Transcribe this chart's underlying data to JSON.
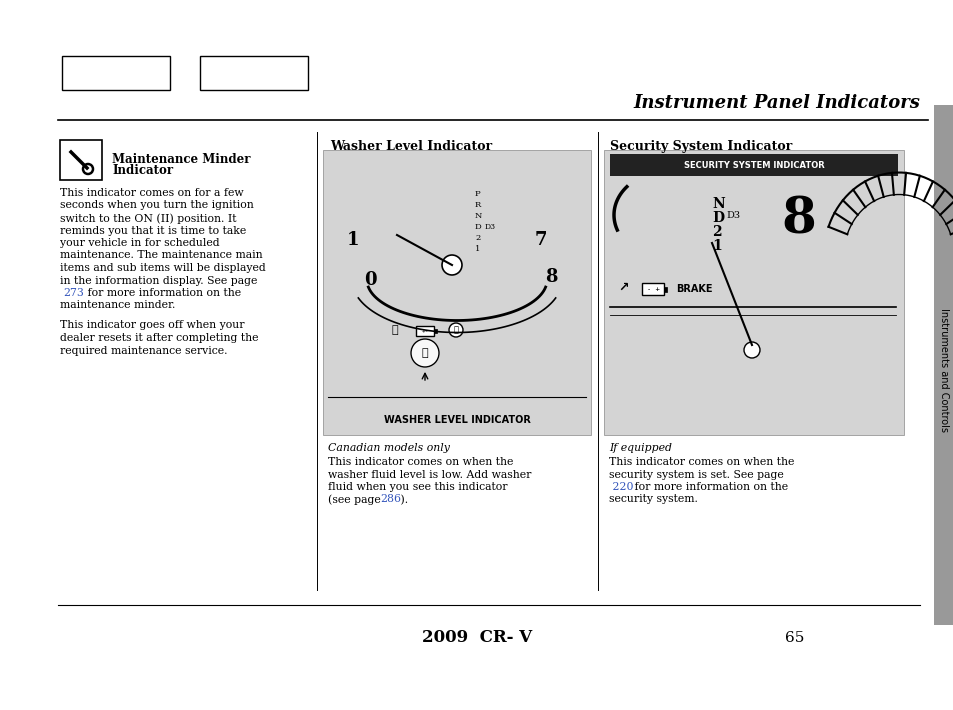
{
  "title": "Instrument Panel Indicators",
  "footer": "2009  CR- V",
  "page_number": "65",
  "sidebar_text": "Instruments and Controls",
  "section1_heading_line1": "Maintenance Minder",
  "section1_heading_line2": "Indicator",
  "section1_body1_lines": [
    "This indicator comes on for a few",
    "seconds when you turn the ignition",
    "switch to the ON (II) position. It",
    "reminds you that it is time to take",
    "your vehicle in for scheduled",
    "maintenance. The maintenance main",
    "items and sub items will be displayed",
    "in the information display. See page"
  ],
  "section1_link1": "273",
  "section1_link1_suffix": " for more information on the",
  "section1_link1_next": "maintenance minder.",
  "section1_body2_lines": [
    "This indicator goes off when your",
    "dealer resets it after completing the",
    "required maintenance service."
  ],
  "section2_heading": "Washer Level Indicator",
  "section2_image_label": "WASHER LEVEL INDICATOR",
  "section2_caption": "Canadian models only",
  "section2_body_lines": [
    "This indicator comes on when the",
    "washer fluid level is low. Add washer",
    "fluid when you see this indicator"
  ],
  "section2_last_line_prefix": "(see page ",
  "section2_link": "286",
  "section2_last_line_suffix": " ).",
  "section3_heading": "Security System Indicator",
  "section3_image_label": "SECURITY SYSTEM INDICATOR",
  "section3_caption": "If equipped",
  "section3_body_lines": [
    "This indicator comes on when the",
    "security system is set. See page"
  ],
  "section3_link": "220",
  "section3_link_suffix": " for more information on the",
  "section3_link_next": "security system.",
  "bg_color": "#ffffff",
  "panel_color": "#d4d4d4",
  "dark_band_color": "#222222",
  "border_color": "#000000",
  "link_color": "#3355bb",
  "sidebar_color": "#999999"
}
